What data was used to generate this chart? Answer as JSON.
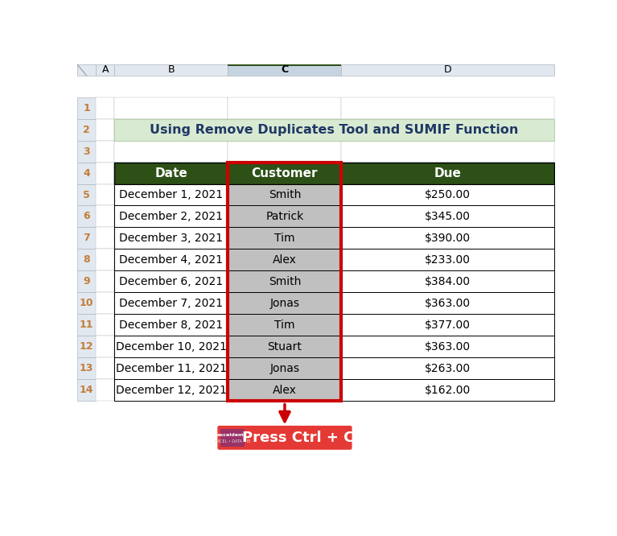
{
  "title": "Using Remove Duplicates Tool and SUMIF Function",
  "title_bg": "#d9ead3",
  "title_color": "#1f3864",
  "header_bg": "#2d5016",
  "header_text_color": "#ffffff",
  "cell_bg_white": "#ffffff",
  "cell_bg_gray": "#c0c0c0",
  "border_color": "#000000",
  "highlight_border": "#cc0000",
  "col_headers": [
    "Date",
    "Customer",
    "Due"
  ],
  "rows": [
    [
      "December 1, 2021",
      "Smith",
      "$250.00"
    ],
    [
      "December 2, 2021",
      "Patrick",
      "$345.00"
    ],
    [
      "December 3, 2021",
      "Tim",
      "$390.00"
    ],
    [
      "December 4, 2021",
      "Alex",
      "$233.00"
    ],
    [
      "December 6, 2021",
      "Smith",
      "$384.00"
    ],
    [
      "December 7, 2021",
      "Jonas",
      "$363.00"
    ],
    [
      "December 8, 2021",
      "Tim",
      "$377.00"
    ],
    [
      "December 10, 2021",
      "Stuart",
      "$363.00"
    ],
    [
      "December 11, 2021",
      "Jonas",
      "$263.00"
    ],
    [
      "December 12, 2021",
      "Alex",
      "$162.00"
    ]
  ],
  "excel_col_labels": [
    "A",
    "B",
    "C",
    "D"
  ],
  "arrow_color": "#cc0000",
  "button_color": "#e53935",
  "button_text": "Press Ctrl + C",
  "button_text_color": "#ffffff",
  "col_header_bg": "#e2e8ef",
  "col_header_selected": "#c6d4e1",
  "row_header_bg": "#e2e8ef",
  "row_header_color": "#c47d3a",
  "grid_line_color": "#b0b8c0",
  "watermark_logo_color": "#5c2d91"
}
